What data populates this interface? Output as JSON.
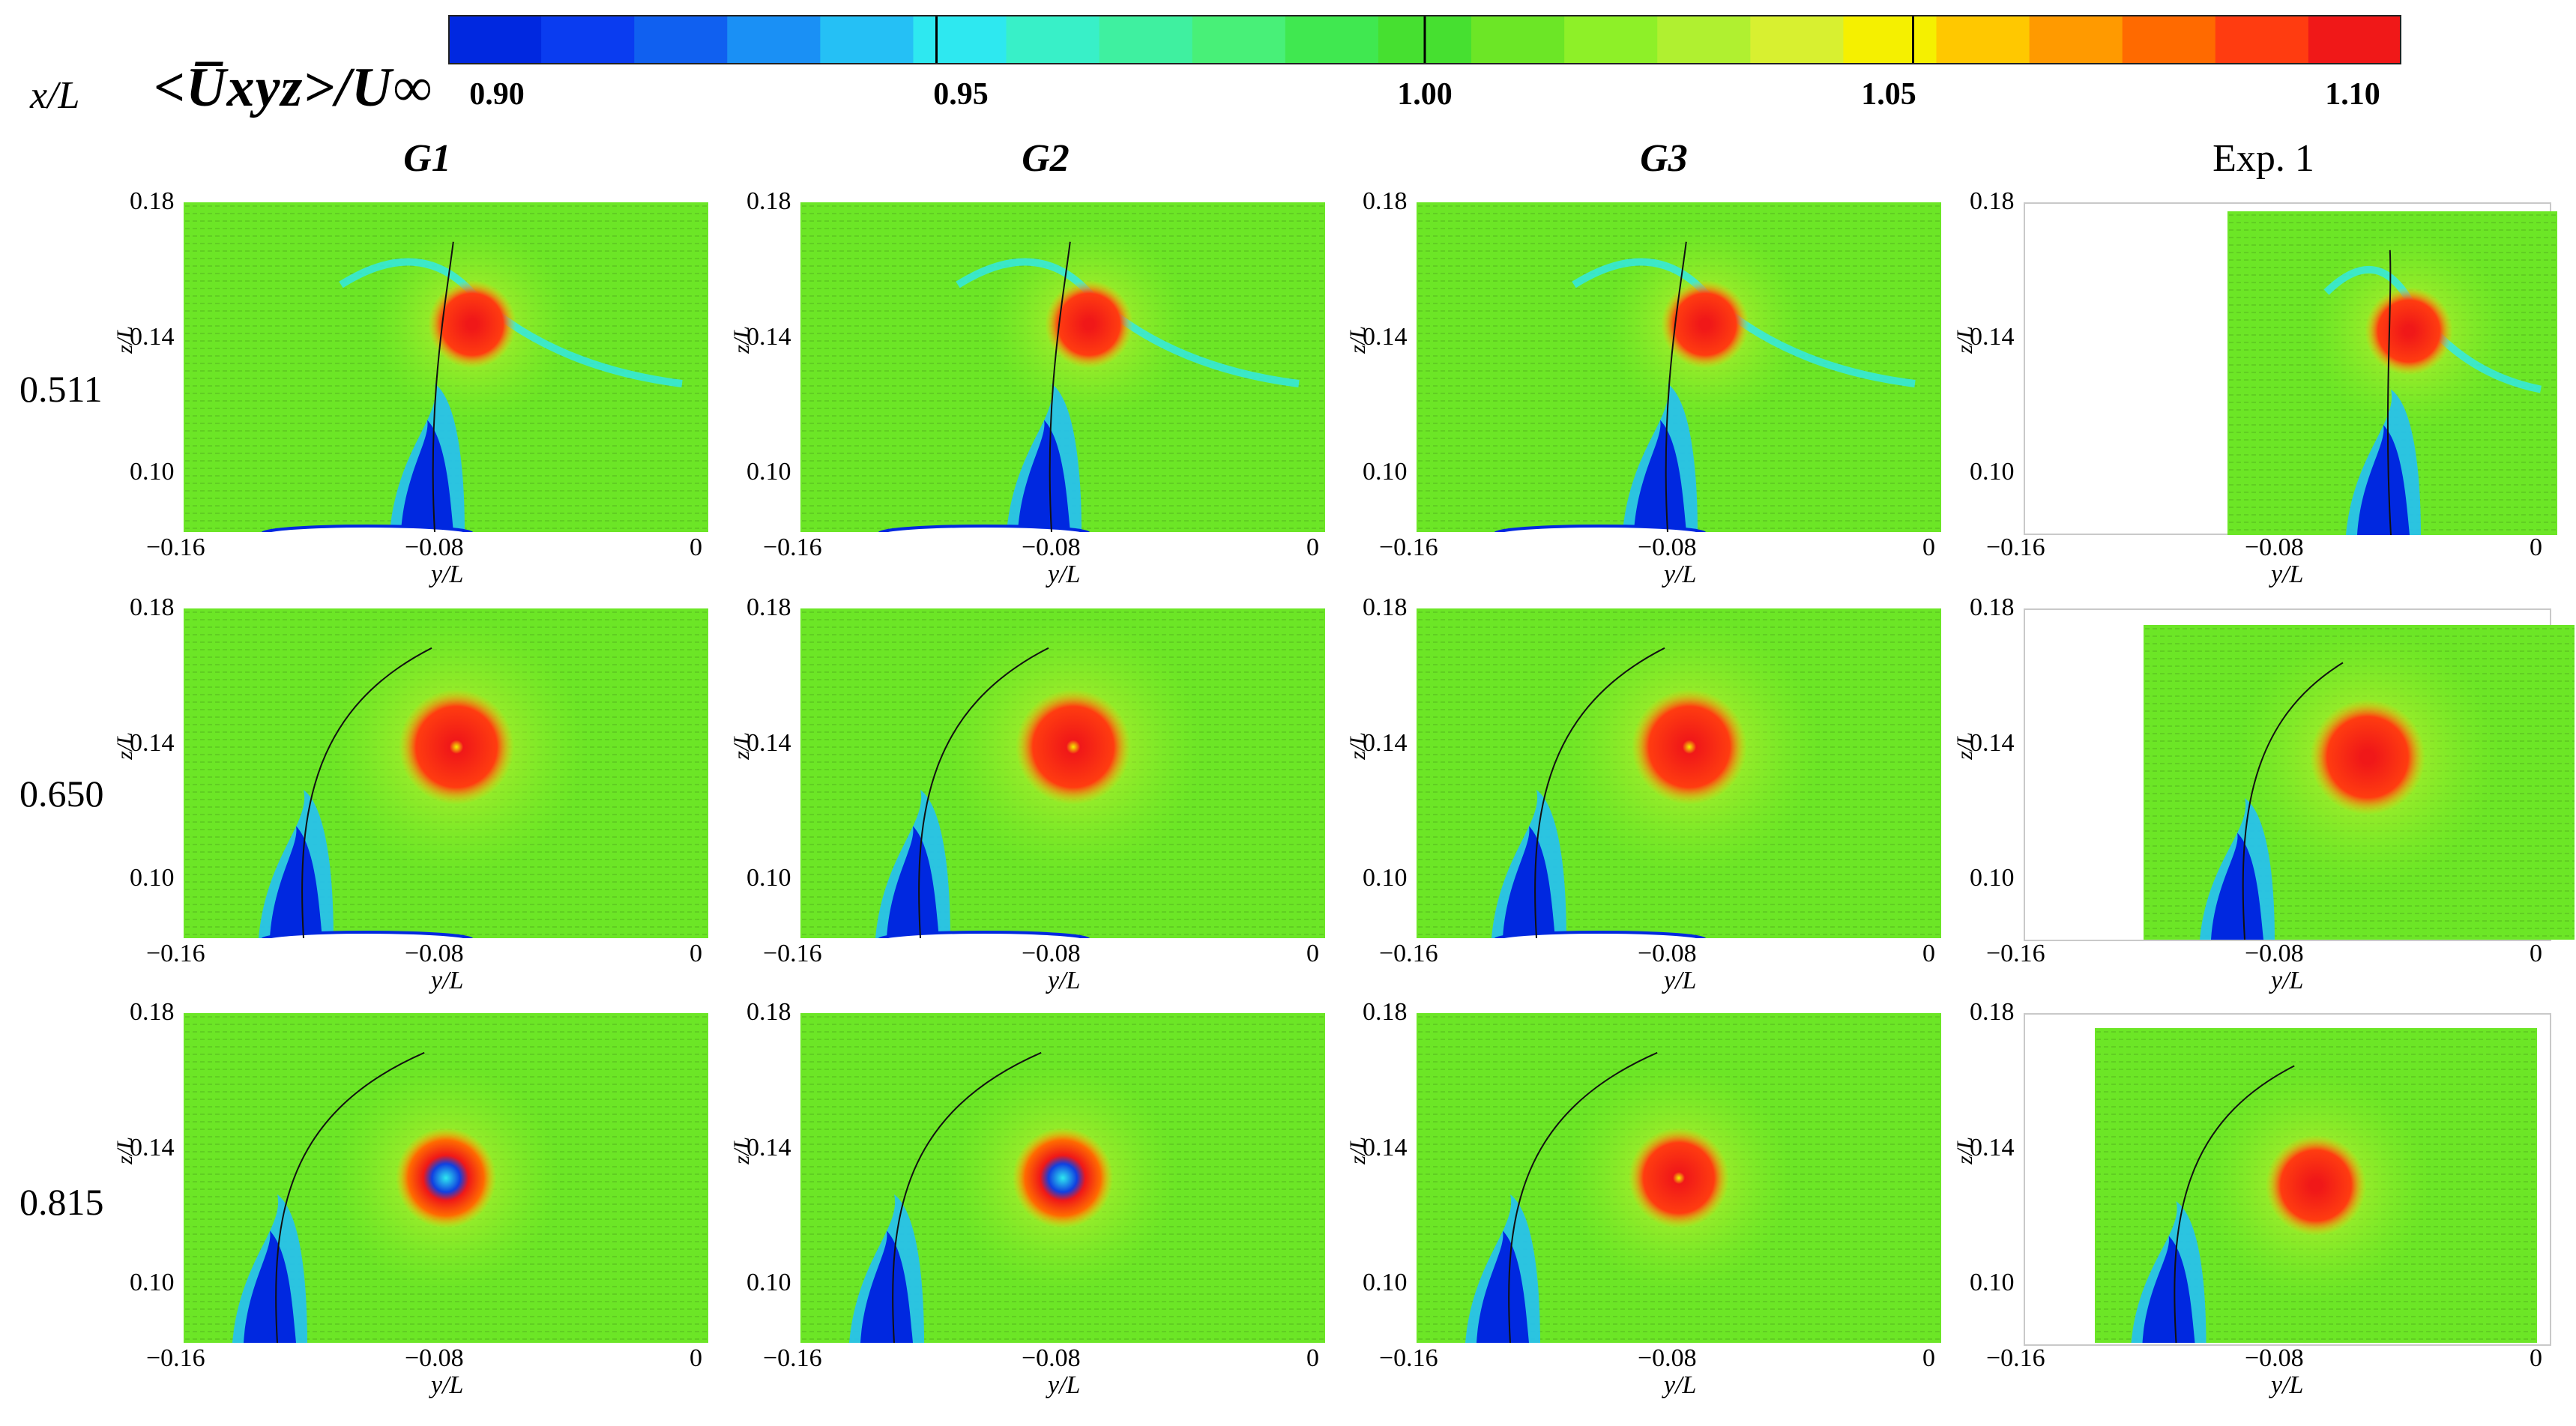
{
  "header": {
    "x_label": "x/L",
    "quantity_label": "<U̅xyz>/U∞",
    "colorbar_ticks": [
      "0.90",
      "0.95",
      "1.00",
      "1.05",
      "1.10"
    ],
    "colorbar_colors": [
      "#0028e0",
      "#0a3cf0",
      "#1060f0",
      "#1a90f5",
      "#25c0f5",
      "#2ee8f0",
      "#38f0c8",
      "#3ff0a0",
      "#48f078",
      "#40e850",
      "#46e030",
      "#6ce626",
      "#8ef028",
      "#b0f030",
      "#d8f030",
      "#f5f000",
      "#ffc800",
      "#ff9a00",
      "#ff6a00",
      "#ff3c10",
      "#f01818"
    ]
  },
  "columns": [
    {
      "label": "G1",
      "italic": true
    },
    {
      "label": "G2",
      "italic": true
    },
    {
      "label": "G3",
      "italic": true
    },
    {
      "label": "Exp. 1",
      "italic": false
    }
  ],
  "rows": [
    {
      "label": "0.511"
    },
    {
      "label": "0.650"
    },
    {
      "label": "0.815"
    }
  ],
  "axes": {
    "x_label": "y/L",
    "y_label": "z/L",
    "x_ticks": [
      "−0.16",
      "−0.08",
      "0"
    ],
    "y_ticks": [
      "0.18",
      "0.14",
      "0.10"
    ]
  }
}
